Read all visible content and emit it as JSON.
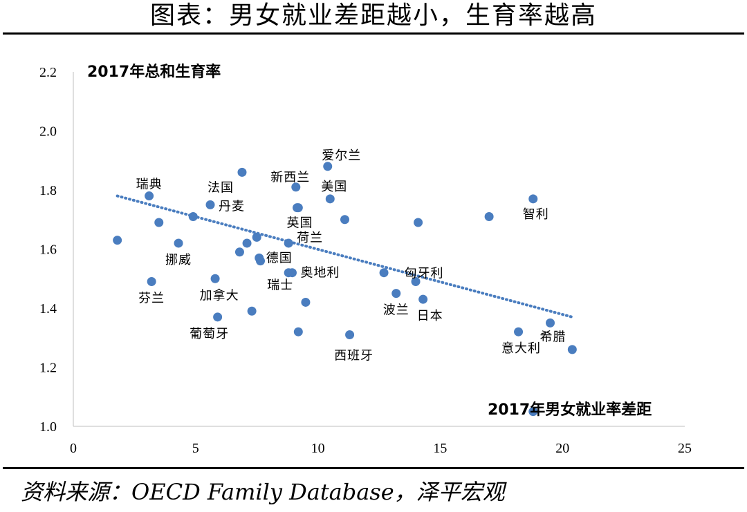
{
  "title": "图表：男女就业差距越小，生育率越高",
  "source": "资料来源：OECD Family Database，泽平宏观",
  "chart_data": {
    "type": "scatter",
    "ylabel": "2017年总和生育率",
    "xlabel": "2017年男女就业率差距",
    "xlim": [
      0,
      25
    ],
    "ylim": [
      1.0,
      2.2
    ],
    "x_ticks": [
      "0",
      "5",
      "10",
      "15",
      "20",
      "25"
    ],
    "y_ticks": [
      "1.0",
      "1.2",
      "1.4",
      "1.6",
      "1.8",
      "2.0",
      "2.2"
    ],
    "grid": false,
    "trendline": {
      "type": "linear",
      "x": [
        1.8,
        20.4
      ],
      "y": [
        1.78,
        1.37
      ],
      "color": "#4a7dbf"
    },
    "point_color": "#4a7dbf",
    "points": [
      {
        "x": 1.8,
        "y": 1.63,
        "label": ""
      },
      {
        "x": 3.1,
        "y": 1.78,
        "label": "瑞典"
      },
      {
        "x": 3.2,
        "y": 1.49,
        "label": "芬兰"
      },
      {
        "x": 3.5,
        "y": 1.69,
        "label": ""
      },
      {
        "x": 4.3,
        "y": 1.62,
        "label": "挪威"
      },
      {
        "x": 4.9,
        "y": 1.71,
        "label": ""
      },
      {
        "x": 5.6,
        "y": 1.75,
        "label": "丹麦"
      },
      {
        "x": 5.8,
        "y": 1.5,
        "label": "加拿大"
      },
      {
        "x": 5.9,
        "y": 1.37,
        "label": "葡萄牙"
      },
      {
        "x": 6.8,
        "y": 1.59,
        "label": ""
      },
      {
        "x": 6.9,
        "y": 1.86,
        "label": "法国"
      },
      {
        "x": 7.1,
        "y": 1.62,
        "label": ""
      },
      {
        "x": 7.3,
        "y": 1.39,
        "label": ""
      },
      {
        "x": 7.5,
        "y": 1.64,
        "label": ""
      },
      {
        "x": 7.6,
        "y": 1.57,
        "label": "德国"
      },
      {
        "x": 7.65,
        "y": 1.56,
        "label": ""
      },
      {
        "x": 8.8,
        "y": 1.62,
        "label": "荷兰"
      },
      {
        "x": 8.8,
        "y": 1.52,
        "label": "瑞士"
      },
      {
        "x": 8.95,
        "y": 1.52,
        "label": "奥地利"
      },
      {
        "x": 9.1,
        "y": 1.81,
        "label": "新西兰"
      },
      {
        "x": 9.15,
        "y": 1.74,
        "label": "英国"
      },
      {
        "x": 9.2,
        "y": 1.74,
        "label": ""
      },
      {
        "x": 9.2,
        "y": 1.32,
        "label": ""
      },
      {
        "x": 9.5,
        "y": 1.42,
        "label": ""
      },
      {
        "x": 10.4,
        "y": 1.88,
        "label": "爱尔兰"
      },
      {
        "x": 10.5,
        "y": 1.77,
        "label": "美国"
      },
      {
        "x": 11.1,
        "y": 1.7,
        "label": ""
      },
      {
        "x": 11.3,
        "y": 1.31,
        "label": "西班牙"
      },
      {
        "x": 12.7,
        "y": 1.52,
        "label": ""
      },
      {
        "x": 13.2,
        "y": 1.45,
        "label": "波兰"
      },
      {
        "x": 14.0,
        "y": 1.49,
        "label": "匈牙利"
      },
      {
        "x": 14.1,
        "y": 1.69,
        "label": ""
      },
      {
        "x": 14.3,
        "y": 1.43,
        "label": "日本"
      },
      {
        "x": 17.0,
        "y": 1.71,
        "label": ""
      },
      {
        "x": 18.2,
        "y": 1.32,
        "label": "意大利"
      },
      {
        "x": 18.8,
        "y": 1.77,
        "label": "智利"
      },
      {
        "x": 18.8,
        "y": 1.05,
        "label": ""
      },
      {
        "x": 19.5,
        "y": 1.35,
        "label": "希腊"
      },
      {
        "x": 20.4,
        "y": 1.26,
        "label": ""
      }
    ]
  }
}
